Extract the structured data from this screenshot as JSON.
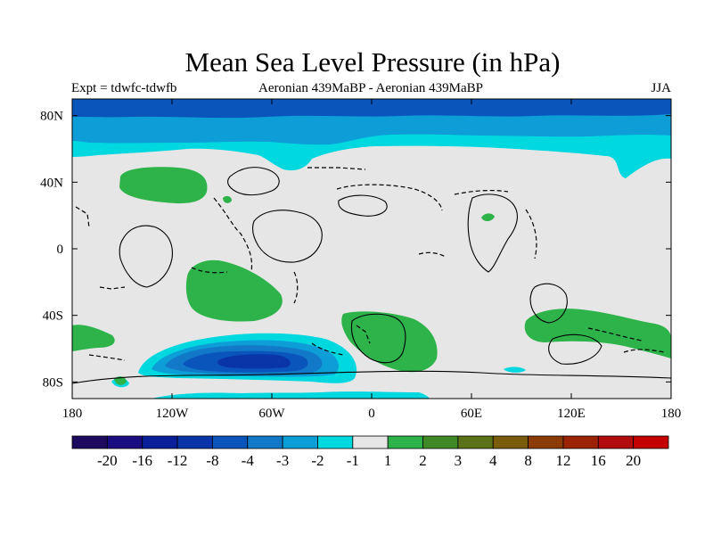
{
  "title": "Mean Sea Level Pressure (in hPa)",
  "subtitle_left": "Expt = tdwfc-tdwfb",
  "subtitle_center": "Aeronian 439MaBP - Aeronian 439MaBP",
  "subtitle_right": "JJA",
  "map": {
    "lat_ticks": [
      "80N",
      "40N",
      "0",
      "40S",
      "80S"
    ],
    "lon_ticks": [
      "180",
      "120W",
      "60W",
      "0",
      "60E",
      "120E",
      "180"
    ],
    "background_color": "#e6e6e6"
  },
  "colorbar": {
    "colors": [
      "#1c0a5e",
      "#1a0d82",
      "#0c1f9a",
      "#0a35a8",
      "#0a55bb",
      "#1279c8",
      "#0d9ed8",
      "#00d8e0",
      "#e6e6e6",
      "#2db34a",
      "#3f8a27",
      "#5c7218",
      "#7a5c0a",
      "#8c3a06",
      "#9c2205",
      "#b30c0c",
      "#c40000"
    ],
    "labels": [
      "-20",
      "-16",
      "-12",
      "-8",
      "-4",
      "-3",
      "-2",
      "-1",
      "1",
      "2",
      "3",
      "4",
      "8",
      "12",
      "16",
      "20"
    ]
  },
  "chart_data": {
    "type": "heatmap",
    "title": "Mean Sea Level Pressure (in hPa)",
    "experiment": "Expt = tdwfc-tdwfb",
    "period": "Aeronian 439MaBP - Aeronian 439MaBP",
    "season": "JJA",
    "units": "hPa",
    "xlim": [
      -180,
      180
    ],
    "ylim": [
      -90,
      90
    ],
    "contour_levels": [
      -20,
      -16,
      -12,
      -8,
      -4,
      -3,
      -2,
      -1,
      1,
      2,
      3,
      4,
      8,
      12,
      16,
      20
    ],
    "features": [
      {
        "name": "northern polar low",
        "lon_range": [
          -180,
          180
        ],
        "lat_range": [
          60,
          90
        ],
        "min_value": -4
      },
      {
        "name": "southern ocean low",
        "lon_range": [
          -140,
          -10
        ],
        "lat_range": [
          -85,
          -55
        ],
        "min_value": -8
      },
      {
        "name": "north pacific high",
        "lon_range": [
          -150,
          -95
        ],
        "lat_range": [
          30,
          45
        ],
        "max_value": 2
      },
      {
        "name": "south pacific high",
        "lon_range": [
          -110,
          -50
        ],
        "lat_range": [
          -45,
          -10
        ],
        "max_value": 2
      },
      {
        "name": "south atlantic high",
        "lon_range": [
          -15,
          45
        ],
        "lat_range": [
          -75,
          -35
        ],
        "max_value": 2
      },
      {
        "name": "indian ocean high",
        "lon_range": [
          95,
          180
        ],
        "lat_range": [
          -70,
          -35
        ],
        "max_value": 2
      }
    ]
  }
}
